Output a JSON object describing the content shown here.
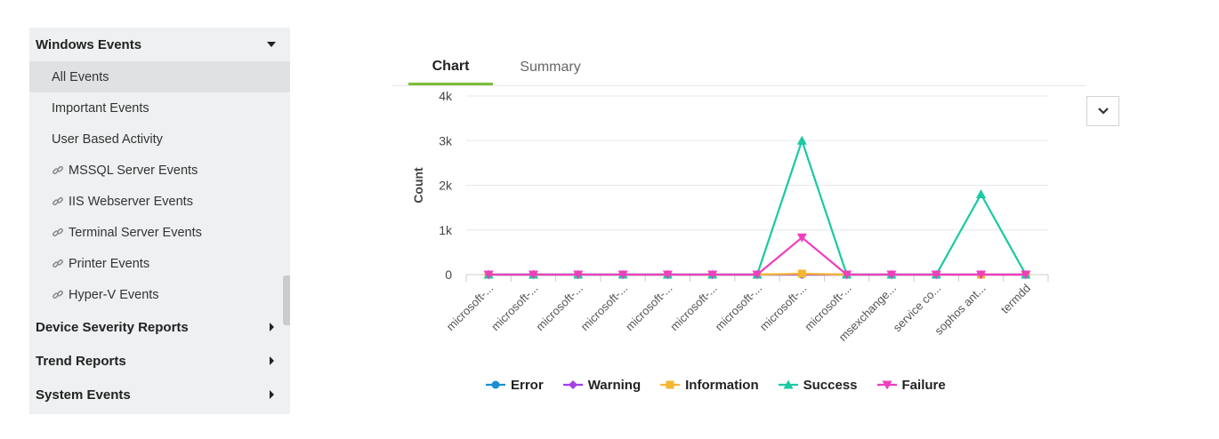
{
  "sidebar": {
    "groups": [
      {
        "label": "Windows Events",
        "expanded": true
      },
      {
        "label": "Device Severity Reports",
        "expanded": false
      },
      {
        "label": "Trend Reports",
        "expanded": false
      },
      {
        "label": "System Events",
        "expanded": false
      }
    ],
    "windows_items": [
      {
        "label": "All Events"
      },
      {
        "label": "Important Events"
      },
      {
        "label": "User Based Activity"
      },
      {
        "label": "MSSQL Server Events"
      },
      {
        "label": "IIS Webserver Events"
      },
      {
        "label": "Terminal Server Events"
      },
      {
        "label": "Printer Events"
      },
      {
        "label": "Hyper-V Events"
      }
    ]
  },
  "tabs": {
    "chart": "Chart",
    "summary": "Summary"
  },
  "colors": {
    "Error": "#1a8fd1",
    "Warning": "#a43fe6",
    "Information": "#f5b731",
    "Success": "#1bc9a2",
    "Failure": "#ee3fbe",
    "tab_accent": "#7cbf3a"
  },
  "chart_data": {
    "type": "line",
    "ylabel": "Count",
    "ylim": [
      0,
      4000
    ],
    "yticks": [
      {
        "value": 0,
        "label": "0"
      },
      {
        "value": 1000,
        "label": "1k"
      },
      {
        "value": 2000,
        "label": "2k"
      },
      {
        "value": 3000,
        "label": "3k"
      },
      {
        "value": 4000,
        "label": "4k"
      }
    ],
    "categories": [
      "microsoft-...",
      "microsoft-...",
      "microsoft-...",
      "microsoft-...",
      "microsoft-...",
      "microsoft-...",
      "microsoft-...",
      "microsoft-...",
      "microsoft-...",
      "msexchange...",
      "service co...",
      "sophos ant...",
      "termdd"
    ],
    "series": [
      {
        "name": "Error",
        "values": [
          0,
          0,
          0,
          0,
          0,
          0,
          0,
          0,
          0,
          0,
          0,
          0,
          0
        ]
      },
      {
        "name": "Warning",
        "values": [
          0,
          0,
          0,
          0,
          0,
          0,
          0,
          0,
          0,
          0,
          0,
          0,
          0
        ]
      },
      {
        "name": "Information",
        "values": [
          0,
          0,
          0,
          0,
          0,
          0,
          0,
          20,
          0,
          0,
          0,
          0,
          0
        ]
      },
      {
        "name": "Success",
        "values": [
          0,
          0,
          0,
          0,
          0,
          0,
          0,
          3000,
          0,
          0,
          0,
          1800,
          0
        ]
      },
      {
        "name": "Failure",
        "values": [
          0,
          0,
          0,
          0,
          0,
          0,
          0,
          830,
          0,
          0,
          0,
          0,
          0
        ]
      }
    ],
    "legend": [
      "Error",
      "Warning",
      "Information",
      "Success",
      "Failure"
    ]
  }
}
